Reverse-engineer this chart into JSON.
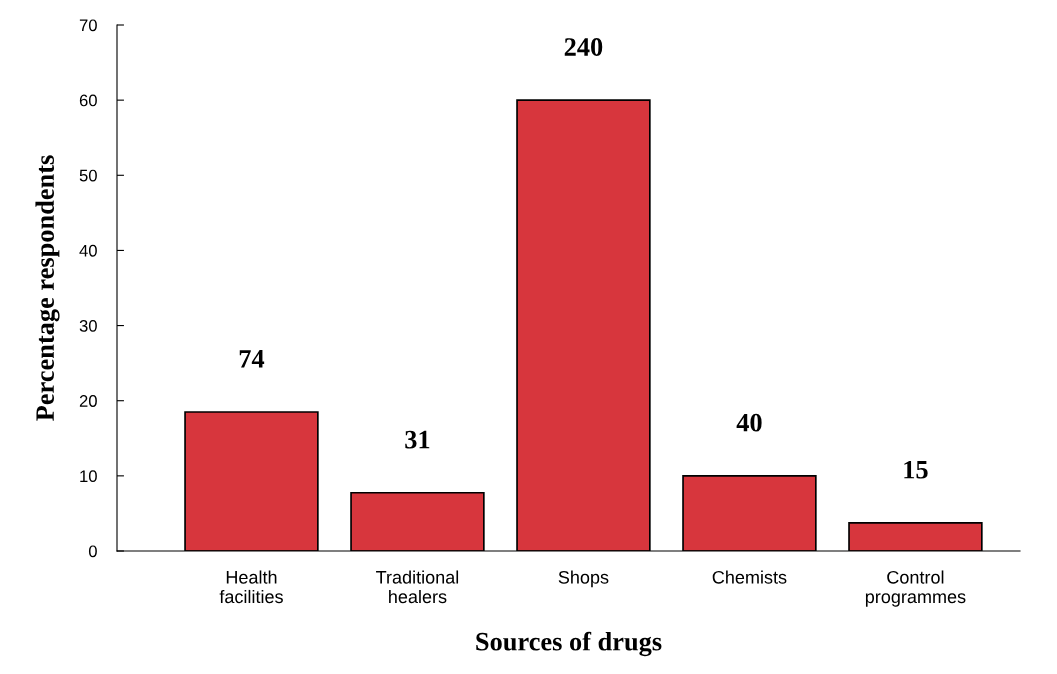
{
  "chart_data": {
    "type": "bar",
    "xlabel": "Sources of drugs",
    "ylabel": "Percentage respondents",
    "categories": [
      "Health facilities",
      "Traditional healers",
      "Shops",
      "Chemists",
      "Control programmes"
    ],
    "values": [
      18.5,
      7.75,
      60,
      10,
      3.75
    ],
    "annotations": [
      {
        "text": "74",
        "x": "Health facilities",
        "y": 18.5
      },
      {
        "text": "31",
        "x": "Traditional healers",
        "y": 7.75
      },
      {
        "text": "240",
        "x": "Shops",
        "y": 60
      },
      {
        "text": "40",
        "x": "Chemists",
        "y": 10
      },
      {
        "text": "15",
        "x": "Control programmes",
        "y": 3.75
      }
    ],
    "color": "#d7363d",
    "ylim": [
      0,
      70
    ],
    "yticks": [
      0,
      10,
      20,
      30,
      40,
      50,
      60,
      70
    ],
    "grid": false
  }
}
